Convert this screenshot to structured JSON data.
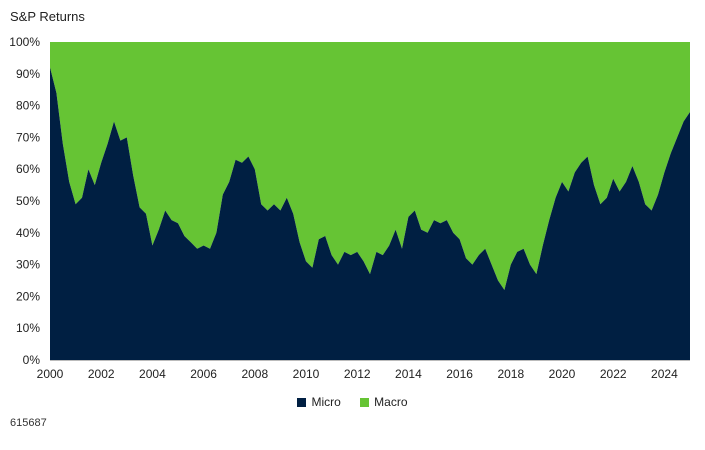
{
  "chart_data": {
    "type": "area",
    "stacked": true,
    "title": "S&P Returns",
    "xlabel": "",
    "ylabel": "",
    "ylim": [
      0,
      100
    ],
    "xlim": [
      2000,
      2025
    ],
    "y_ticks": [
      "0%",
      "10%",
      "20%",
      "30%",
      "40%",
      "50%",
      "60%",
      "70%",
      "80%",
      "90%",
      "100%"
    ],
    "x_ticks": [
      "2000",
      "2002",
      "2004",
      "2006",
      "2008",
      "2010",
      "2012",
      "2014",
      "2016",
      "2018",
      "2020",
      "2022",
      "2024"
    ],
    "x_start": 2000,
    "x_step": 0.25,
    "series": [
      {
        "name": "Micro",
        "color": "#001f42",
        "values": [
          92,
          84,
          68,
          56,
          49,
          51,
          60,
          55,
          62,
          68,
          75,
          69,
          70,
          58,
          48,
          46,
          36,
          41,
          47,
          44,
          43,
          39,
          37,
          35,
          36,
          35,
          40,
          52,
          56,
          63,
          62,
          64,
          60,
          49,
          47,
          49,
          47,
          51,
          46,
          37,
          31,
          29,
          38,
          39,
          33,
          30,
          34,
          33,
          34,
          31,
          27,
          34,
          33,
          36,
          41,
          35,
          45,
          47,
          41,
          40,
          44,
          43,
          44,
          40,
          38,
          32,
          30,
          33,
          35,
          30,
          25,
          22,
          30,
          34,
          35,
          30,
          27,
          36,
          44,
          51,
          56,
          53,
          59,
          62,
          64,
          55,
          49,
          51,
          57,
          53,
          56,
          61,
          56,
          49,
          47,
          52,
          59,
          65,
          70,
          75,
          78
        ]
      },
      {
        "name": "Macro",
        "color": "#66c434",
        "values": "remainder to 100%"
      }
    ],
    "legend": {
      "placement": "bottom-center",
      "items": [
        "Micro",
        "Macro"
      ]
    }
  },
  "footnote": "615687"
}
